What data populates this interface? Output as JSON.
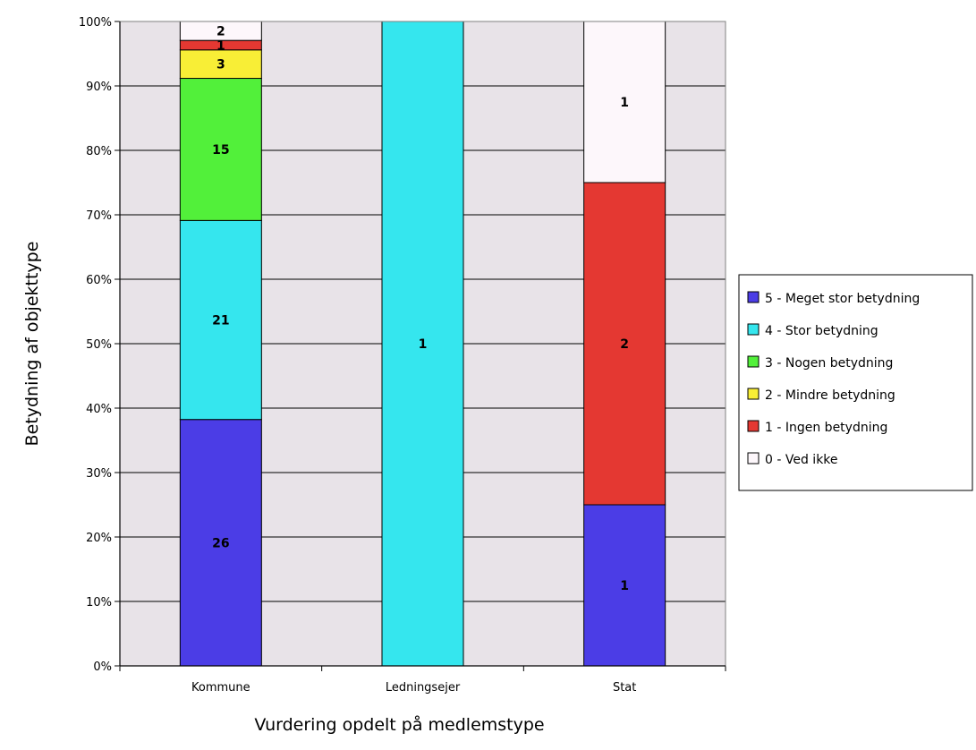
{
  "chart_data": {
    "type": "bar",
    "stacked": true,
    "percent_stacked": true,
    "title": "",
    "xlabel": "Vurdering opdelt på medlemstype",
    "ylabel": "Betydning af objekttype",
    "categories": [
      "Kommune",
      "Ledningsejer",
      "Stat"
    ],
    "y_ticks": [
      "0%",
      "10%",
      "20%",
      "30%",
      "40%",
      "50%",
      "60%",
      "70%",
      "80%",
      "90%",
      "100%"
    ],
    "ylim": [
      0,
      100
    ],
    "grid": true,
    "legend_position": "right",
    "series": [
      {
        "name": "5 - Meget stor betydning",
        "color": "#4b3de6",
        "values": [
          26,
          0,
          1
        ]
      },
      {
        "name": "4 - Stor betydning",
        "color": "#35e6ee",
        "values": [
          21,
          1,
          0
        ]
      },
      {
        "name": "3 - Nogen betydning",
        "color": "#52f03a",
        "values": [
          15,
          0,
          0
        ]
      },
      {
        "name": "2 - Mindre betydning",
        "color": "#f8ee36",
        "values": [
          3,
          0,
          0
        ]
      },
      {
        "name": "1 - Ingen betydning",
        "color": "#e43832",
        "values": [
          1,
          0,
          2
        ]
      },
      {
        "name": "0 - Ved ikke",
        "color": "#fdf7fb",
        "values": [
          2,
          0,
          1
        ]
      }
    ],
    "legend_order": [
      5,
      4,
      3,
      2,
      1,
      0
    ],
    "plot_background": "#e8e3e8"
  }
}
